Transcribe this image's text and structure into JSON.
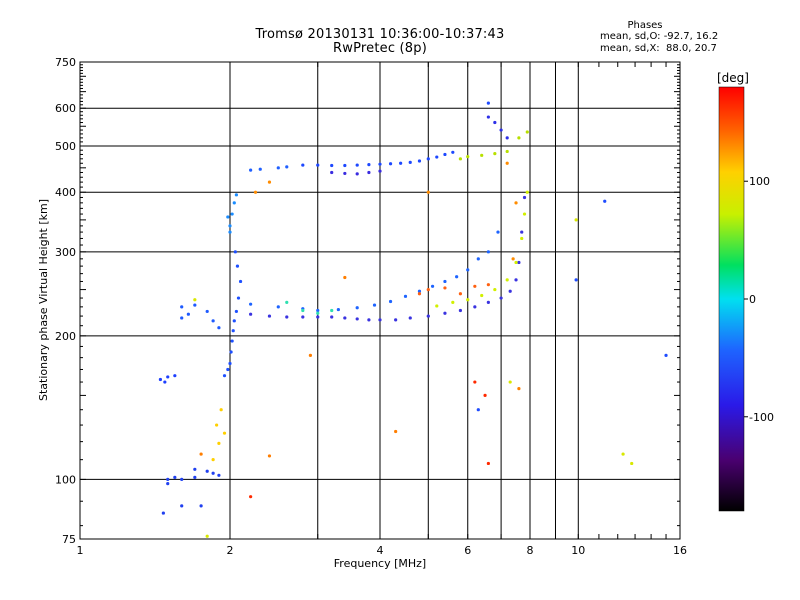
{
  "header": {
    "title": "Tromsø 20130131 10:36:00-10:37:43",
    "subtitle": "RwPretec (8p)"
  },
  "phase_box": {
    "title": "Phases",
    "line_o": "mean, sd,O: -92.7, 16.2",
    "line_x": "mean, sd,X:  88.0, 20.7"
  },
  "colorbar": {
    "label": "[deg]",
    "ticks": [
      {
        "value": 100,
        "label": "100"
      },
      {
        "value": 0,
        "label": "0"
      },
      {
        "value": -100,
        "label": "-100"
      }
    ],
    "min": -180,
    "max": 180
  },
  "chart_data": {
    "type": "scatter",
    "title": "Tromsø 20130131 10:36:00-10:37:43",
    "subtitle": "RwPretec (8p)",
    "xlabel": "Frequency [MHz]",
    "ylabel": "Stationary phase Virtual Height [km]",
    "xscale": "log",
    "yscale": "log",
    "xlim": [
      1,
      16
    ],
    "ylim": [
      75,
      750
    ],
    "xticks": [
      1,
      2,
      4,
      6,
      8,
      10,
      16
    ],
    "yticks": [
      75,
      100,
      200,
      300,
      400,
      500,
      600,
      750
    ],
    "xgrid_major": [
      2,
      4,
      6,
      8,
      10
    ],
    "xgrid_minor": [
      3,
      5,
      7,
      9
    ],
    "ygrid": [
      100,
      200,
      300,
      400,
      500,
      600
    ],
    "color_quantity": "phase [deg]",
    "series": [
      {
        "color": "#1d48ff",
        "points": [
          [
            2.8,
            456
          ],
          [
            3.0,
            456
          ],
          [
            3.2,
            455
          ],
          [
            3.4,
            455
          ],
          [
            3.6,
            456
          ],
          [
            3.8,
            457
          ],
          [
            4.0,
            458
          ],
          [
            4.2,
            459
          ],
          [
            4.4,
            460
          ],
          [
            4.6,
            462
          ],
          [
            4.8,
            465
          ],
          [
            5.0,
            470
          ],
          [
            5.2,
            474
          ],
          [
            5.4,
            480
          ],
          [
            5.6,
            485
          ]
        ]
      },
      {
        "color": "#3a2ce0",
        "points": [
          [
            3.2,
            440
          ],
          [
            3.4,
            438
          ],
          [
            3.6,
            437
          ],
          [
            3.8,
            440
          ],
          [
            4.0,
            443
          ]
        ]
      },
      {
        "color": "#2060ff",
        "points": [
          [
            2.2,
            445
          ],
          [
            2.3,
            447
          ],
          [
            2.5,
            450
          ],
          [
            2.6,
            452
          ]
        ]
      },
      {
        "color": "#b8e000",
        "points": [
          [
            5.8,
            470
          ],
          [
            6.0,
            475
          ],
          [
            6.4,
            478
          ],
          [
            6.8,
            482
          ],
          [
            7.2,
            487
          ],
          [
            7.6,
            520
          ],
          [
            7.9,
            535
          ]
        ]
      },
      {
        "color": "#2e30e8",
        "points": [
          [
            6.6,
            575
          ],
          [
            6.8,
            560
          ],
          [
            7.0,
            540
          ],
          [
            7.2,
            520
          ]
        ]
      },
      {
        "color": "#1a8cff",
        "points": [
          [
            2.0,
            340
          ],
          [
            2.02,
            360
          ],
          [
            2.04,
            380
          ],
          [
            2.06,
            395
          ],
          [
            2.0,
            330
          ],
          [
            1.98,
            355
          ]
        ]
      },
      {
        "color": "#1e50ff",
        "points": [
          [
            2.05,
            300
          ],
          [
            2.07,
            280
          ],
          [
            2.1,
            260
          ],
          [
            2.08,
            240
          ],
          [
            2.06,
            225
          ],
          [
            2.04,
            215
          ],
          [
            2.03,
            205
          ],
          [
            2.02,
            195
          ],
          [
            2.01,
            185
          ],
          [
            2.0,
            175
          ],
          [
            1.98,
            170
          ],
          [
            1.95,
            165
          ]
        ]
      },
      {
        "color": "#3a33e0",
        "points": [
          [
            2.2,
            222
          ],
          [
            2.4,
            220
          ],
          [
            2.6,
            219
          ],
          [
            2.8,
            219
          ],
          [
            3.0,
            219
          ],
          [
            3.2,
            219
          ],
          [
            3.4,
            218
          ],
          [
            3.6,
            217
          ],
          [
            3.8,
            216
          ],
          [
            4.0,
            216
          ],
          [
            4.3,
            216
          ],
          [
            4.6,
            218
          ],
          [
            5.0,
            220
          ],
          [
            5.4,
            223
          ],
          [
            5.8,
            226
          ],
          [
            6.2,
            230
          ],
          [
            6.6,
            235
          ],
          [
            7.0,
            240
          ],
          [
            7.3,
            248
          ],
          [
            7.5,
            262
          ],
          [
            7.6,
            285
          ],
          [
            7.7,
            330
          ],
          [
            7.8,
            390
          ]
        ]
      },
      {
        "color": "#1e64ff",
        "points": [
          [
            2.2,
            233
          ],
          [
            2.5,
            230
          ],
          [
            2.8,
            228
          ],
          [
            3.0,
            226
          ],
          [
            3.3,
            227
          ],
          [
            3.6,
            229
          ],
          [
            3.9,
            232
          ],
          [
            4.2,
            236
          ],
          [
            4.5,
            242
          ],
          [
            4.8,
            248
          ],
          [
            5.1,
            254
          ],
          [
            5.4,
            260
          ],
          [
            5.7,
            266
          ],
          [
            6.0,
            275
          ],
          [
            6.3,
            290
          ],
          [
            6.6,
            300
          ],
          [
            6.9,
            330
          ]
        ]
      },
      {
        "color": "#2ee0b0",
        "points": [
          [
            2.6,
            235
          ],
          [
            2.8,
            226
          ],
          [
            3.0,
            223
          ],
          [
            3.2,
            226
          ]
        ]
      },
      {
        "color": "#d2f000",
        "points": [
          [
            5.2,
            231
          ],
          [
            5.6,
            235
          ],
          [
            6.0,
            238
          ],
          [
            6.4,
            243
          ],
          [
            6.8,
            250
          ],
          [
            7.2,
            262
          ],
          [
            7.5,
            285
          ],
          [
            7.7,
            320
          ],
          [
            7.8,
            360
          ],
          [
            7.9,
            400
          ]
        ]
      },
      {
        "color": "#ff6010",
        "points": [
          [
            4.8,
            245
          ],
          [
            5.0,
            250
          ],
          [
            5.4,
            252
          ],
          [
            5.8,
            245
          ],
          [
            6.2,
            254
          ],
          [
            6.6,
            256
          ]
        ]
      },
      {
        "color": "#1e5aff",
        "points": [
          [
            1.6,
            230
          ],
          [
            1.7,
            232
          ],
          [
            1.8,
            225
          ],
          [
            1.85,
            215
          ],
          [
            1.9,
            208
          ],
          [
            1.6,
            218
          ],
          [
            1.65,
            222
          ]
        ]
      },
      {
        "color": "#1e40ff",
        "points": [
          [
            1.45,
            162
          ],
          [
            1.5,
            164
          ],
          [
            1.55,
            165
          ],
          [
            1.48,
            160
          ]
        ]
      },
      {
        "color": "#2040f0",
        "points": [
          [
            1.5,
            100
          ],
          [
            1.55,
            101
          ],
          [
            1.6,
            100
          ],
          [
            1.7,
            101
          ],
          [
            1.8,
            104
          ],
          [
            1.85,
            103
          ],
          [
            1.9,
            102
          ],
          [
            1.7,
            105
          ],
          [
            1.5,
            98
          ],
          [
            1.47,
            85
          ],
          [
            1.6,
            88
          ],
          [
            1.75,
            88
          ]
        ]
      },
      {
        "color": "#ffd000",
        "points": [
          [
            1.9,
            119
          ],
          [
            1.95,
            125
          ],
          [
            1.85,
            110
          ],
          [
            1.88,
            130
          ],
          [
            1.92,
            140
          ]
        ]
      },
      {
        "color": "#ff8c00",
        "points": [
          [
            2.25,
            400
          ],
          [
            2.4,
            420
          ],
          [
            5.0,
            400
          ],
          [
            7.2,
            460
          ],
          [
            7.4,
            290
          ],
          [
            7.5,
            380
          ]
        ]
      },
      {
        "color": "#d8e800",
        "points": [
          [
            1.7,
            238
          ],
          [
            7.3,
            160
          ],
          [
            12.3,
            113
          ],
          [
            12.8,
            108
          ],
          [
            9.9,
            350
          ],
          [
            1.8,
            76
          ]
        ]
      },
      {
        "color": "#ff2a00",
        "points": [
          [
            6.6,
            108
          ],
          [
            6.2,
            160
          ],
          [
            6.5,
            150
          ],
          [
            2.2,
            92
          ]
        ]
      },
      {
        "color": "#1f4cff",
        "points": [
          [
            11.3,
            383
          ],
          [
            15.0,
            182
          ],
          [
            9.9,
            262
          ],
          [
            6.3,
            140
          ],
          [
            6.6,
            615
          ]
        ]
      },
      {
        "color": "#ff7e00",
        "points": [
          [
            2.9,
            182
          ],
          [
            4.3,
            126
          ],
          [
            1.75,
            113
          ],
          [
            2.4,
            112
          ],
          [
            7.6,
            155
          ],
          [
            3.4,
            265
          ]
        ]
      }
    ]
  }
}
